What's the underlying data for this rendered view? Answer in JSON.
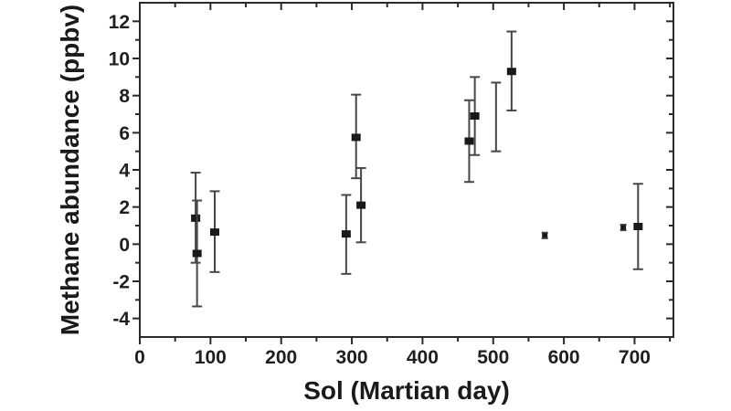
{
  "figure": {
    "background": "#ffffff",
    "axis_color": "#2a2a2a",
    "text_color": "#1f1f1f"
  },
  "chart_data": {
    "type": "scatter",
    "title": "",
    "xlabel": "Sol (Martian day)",
    "ylabel": "Methane abundance (ppbv)",
    "xlim": [
      0,
      755
    ],
    "ylim": [
      -5,
      13
    ],
    "grid": false,
    "legend": false,
    "x_major_ticks": [
      0,
      100,
      200,
      300,
      400,
      500,
      600,
      700
    ],
    "x_minor_ticks": [
      50,
      150,
      250,
      350,
      450,
      550,
      650,
      750
    ],
    "y_major_ticks": [
      -4,
      -2,
      0,
      2,
      4,
      6,
      8,
      10,
      12
    ],
    "y_minor_ticks": [
      -3,
      -1,
      1,
      3,
      5,
      7,
      9,
      11
    ],
    "marker_color": "#191919",
    "errorbar_color": "#474747",
    "points": [
      {
        "sol": 79,
        "value": 1.4,
        "err_plus": 2.45,
        "err_minus": 2.4,
        "marker": "large"
      },
      {
        "sol": 81,
        "value": -0.5,
        "err_plus": 2.85,
        "err_minus": 2.85,
        "marker": "large"
      },
      {
        "sol": 106,
        "value": 0.65,
        "err_plus": 2.2,
        "err_minus": 2.15,
        "marker": "large"
      },
      {
        "sol": 292,
        "value": 0.55,
        "err_plus": 2.1,
        "err_minus": 2.15,
        "marker": "large"
      },
      {
        "sol": 306,
        "value": 5.75,
        "err_plus": 2.3,
        "err_minus": 2.2,
        "marker": "large"
      },
      {
        "sol": 313,
        "value": 2.1,
        "err_plus": 2.0,
        "err_minus": 2.0,
        "marker": "large"
      },
      {
        "sol": 466,
        "value": 5.55,
        "err_plus": 2.2,
        "err_minus": 2.2,
        "marker": "large"
      },
      {
        "sol": 474,
        "value": 6.9,
        "err_plus": 2.1,
        "err_minus": 2.1,
        "marker": "large"
      },
      {
        "sol": 504,
        "value": 6.9,
        "err_plus": 1.8,
        "err_minus": 1.9,
        "marker": "none"
      },
      {
        "sol": 526,
        "value": 9.3,
        "err_plus": 2.15,
        "err_minus": 2.1,
        "marker": "large"
      },
      {
        "sol": 573,
        "value": 0.47,
        "err_plus": 0.15,
        "err_minus": 0.15,
        "marker": "small"
      },
      {
        "sol": 684,
        "value": 0.9,
        "err_plus": 0.15,
        "err_minus": 0.15,
        "marker": "small"
      },
      {
        "sol": 705,
        "value": 0.95,
        "err_plus": 2.3,
        "err_minus": 2.3,
        "marker": "large"
      }
    ]
  }
}
